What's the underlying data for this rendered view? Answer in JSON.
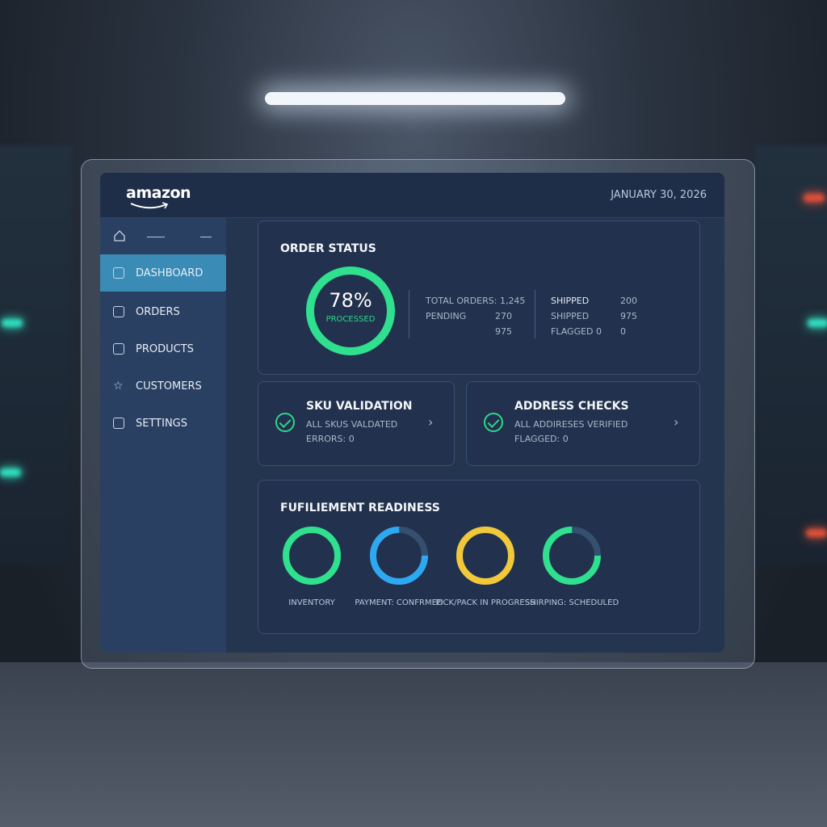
{
  "header": {
    "logo": "amazon",
    "date": "JANUARY 30, 2026"
  },
  "sidebar": {
    "items": [
      {
        "label": "DASHBOARD",
        "icon": "dashboard-icon",
        "active": true
      },
      {
        "label": "ORDERS",
        "icon": "orders-icon"
      },
      {
        "label": "PRODUCTS",
        "icon": "products-icon"
      },
      {
        "label": "CUSTOMERS",
        "icon": "star-icon"
      },
      {
        "label": "SETTINGS",
        "icon": "cart-icon"
      }
    ]
  },
  "order_status": {
    "title": "ORDER STATUS",
    "percent": "78%",
    "percent_value": 78,
    "percent_label": "PROCESSED",
    "col1": [
      {
        "label": "TOTAL ORDERS: 1,245",
        "value": ""
      },
      {
        "label": "PENDING",
        "value": "270"
      },
      {
        "label": "",
        "value": "975"
      }
    ],
    "col2": [
      {
        "label": "SHIPPED",
        "value": "200"
      },
      {
        "label": "SHIPPED",
        "value": "975"
      },
      {
        "label": "FLAGGED 0",
        "value": "0"
      }
    ]
  },
  "sku": {
    "title": "SKU VALIDATION",
    "line1": "ALL SKUS VALDATED",
    "line2": "ERRORS: 0"
  },
  "address": {
    "title": "ADDRESS CHECKS",
    "line1": "ALL ADDIRESES VERIFIED",
    "line2": "FLAGGED: 0"
  },
  "fulfillment": {
    "title": "FUFILIEMENT READINESS",
    "rings": [
      {
        "label": "INVENTORY",
        "progress": 1.0,
        "color": "#2fe08e"
      },
      {
        "label": "PAYMENT: CONFRMED",
        "progress": 0.75,
        "color": "#2ea8f0"
      },
      {
        "label": "PICK/PACK IN PROGRESS",
        "progress": 1.0,
        "color": "#f0c83a"
      },
      {
        "label": "SHIRPING: SCHEDULED",
        "progress": 0.75,
        "color": "#2fe08e"
      }
    ]
  },
  "colors": {
    "accent": "#3a8bb5",
    "success": "#2fe08e"
  }
}
